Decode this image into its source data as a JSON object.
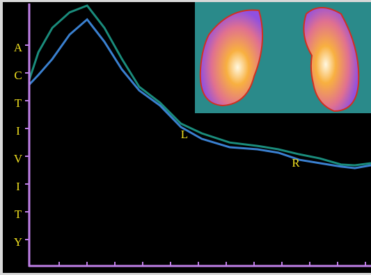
{
  "chart_data": {
    "type": "line",
    "y_label_letters": [
      "A",
      "C",
      "T",
      "I",
      "V",
      "I",
      "T",
      "Y"
    ],
    "x": [
      0,
      0.33,
      0.83,
      1.45,
      2.08,
      2.7,
      3.33,
      3.95,
      4.7,
      5.45,
      6.2,
      7.2,
      8.2,
      8.95,
      9.7,
      10.45,
      11.2,
      11.7,
      12.28
    ],
    "xlim": [
      0,
      12.28
    ],
    "ylim": [
      0,
      100
    ],
    "series": [
      {
        "name": "L",
        "color": "#1a8c7c",
        "values": [
          70.8,
          81.4,
          90.7,
          96.6,
          99.2,
          90.7,
          78.8,
          68.2,
          62.1,
          54.1,
          50.4,
          46.9,
          45.6,
          44.3,
          42.4,
          40.8,
          38.5,
          38.2,
          39.0
        ]
      },
      {
        "name": "R",
        "color": "#3a80d0",
        "values": [
          69.0,
          72.7,
          78.8,
          88.1,
          93.9,
          85.4,
          74.8,
          66.8,
          61.0,
          52.8,
          48.3,
          45.1,
          44.3,
          43.0,
          40.3,
          39.0,
          37.7,
          37.1,
          38.2
        ]
      }
    ]
  }
}
